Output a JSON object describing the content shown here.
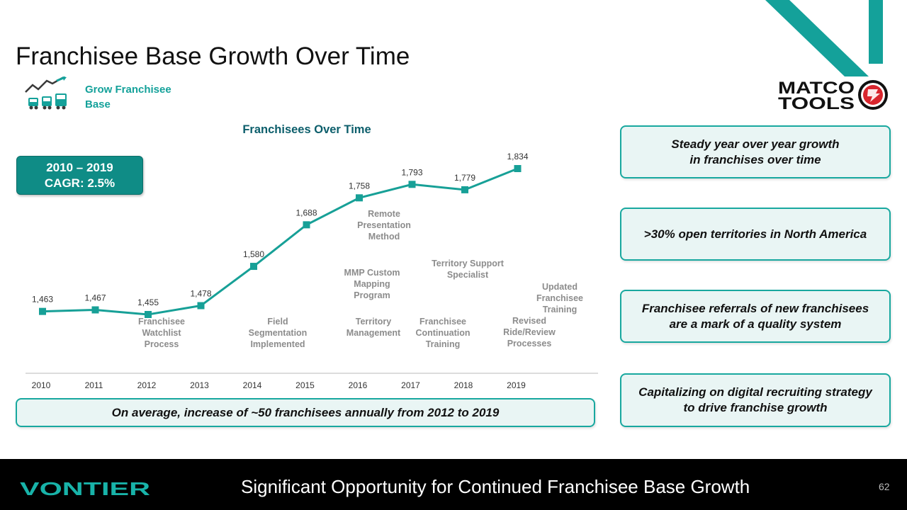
{
  "slide": {
    "title": "Franchisee Base Growth Over Time",
    "subtitle_label_line1": "Grow Franchisee",
    "subtitle_label_line2": "Base",
    "cagr_line1": "2010 – 2019",
    "cagr_line2": "CAGR: 2.5%",
    "bottom_note": "On average, increase of ~50 franchisees annually from 2012 to 2019",
    "logo_text_line1": "MATCO",
    "logo_text_line2": "TOOLS",
    "footer_logo": "VONTIER",
    "footer_text": "Significant Opportunity for Continued Franchisee Base Growth",
    "page_number": "62"
  },
  "callouts": [
    {
      "line1": "Steady year over year growth",
      "line2": "in franchises over time"
    },
    {
      "line1": ">30% open territories in North America",
      "line2": ""
    },
    {
      "line1": "Franchisee referrals of new franchisees",
      "line2": "are a mark of a quality system"
    },
    {
      "line1": "Capitalizing on digital recruiting strategy",
      "line2": "to drive franchise growth"
    }
  ],
  "chart_data": {
    "type": "line",
    "title": "Franchisees Over Time",
    "x": [
      "2010",
      "2011",
      "2012",
      "2013",
      "2014",
      "2015",
      "2016",
      "2017",
      "2018",
      "2019"
    ],
    "series": [
      {
        "values": [
          1463,
          1467,
          1455,
          1478,
          1580,
          1688,
          1758,
          1793,
          1779,
          1834
        ]
      }
    ],
    "data_labels": [
      "1,463",
      "1,467",
      "1,455",
      "1,478",
      "1,580",
      "1,688",
      "1,758",
      "1,793",
      "1,779",
      "1,834"
    ],
    "ylim": [
      1400,
      1850
    ],
    "grid": false,
    "legend": "none",
    "line_color": "#17a097",
    "annotations": [
      {
        "year": "2012",
        "lines": [
          "Franchisee",
          "Watchlist",
          "Process"
        ]
      },
      {
        "year": "2014",
        "lines": [
          "Field",
          "Segmentation",
          "Implemented"
        ]
      },
      {
        "year": "2016",
        "lines": [
          "Remote",
          "Presentation",
          "Method"
        ]
      },
      {
        "year": "2016",
        "lines": [
          "MMP Custom",
          "Mapping",
          "Program"
        ]
      },
      {
        "year": "2016",
        "lines": [
          "Territory",
          "Management"
        ]
      },
      {
        "year": "2017",
        "lines": [
          "Territory Support",
          "Specialist"
        ]
      },
      {
        "year": "2017",
        "lines": [
          "Franchisee",
          "Continuation",
          "Training"
        ]
      },
      {
        "year": "2019",
        "lines": [
          "Updated",
          "Franchisee",
          "Training"
        ]
      },
      {
        "year": "2019",
        "lines": [
          "Revised",
          "Ride/Review",
          "Processes"
        ]
      }
    ]
  },
  "colors": {
    "accent": "#17a097",
    "accent_dark": "#0f8c86",
    "callout_fill": "#e9f5f4",
    "annotation_text": "#8c8c8c",
    "footer_bg": "#000000",
    "matco_red": "#d9262e"
  },
  "icons": [
    "growth-trucks-icon",
    "matco-logo",
    "vontier-logo"
  ]
}
